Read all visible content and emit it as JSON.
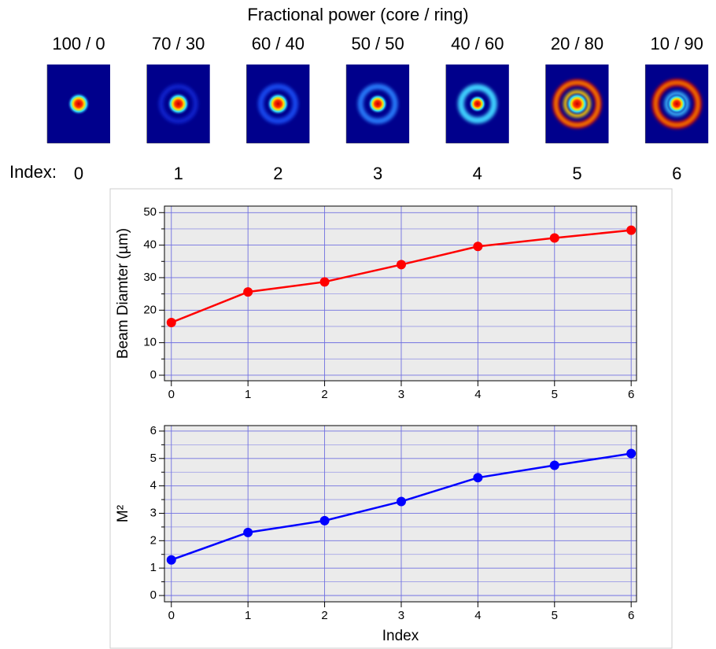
{
  "header": {
    "title": "Fractional power (core / ring)",
    "labels": [
      "100 / 0",
      "70 / 30",
      "60 / 40",
      "50 / 50",
      "40 / 60",
      "20 / 80",
      "10 / 90"
    ],
    "index_label": "Index:",
    "indices": [
      0,
      1,
      2,
      3,
      4,
      5,
      6
    ]
  },
  "chart_data": [
    {
      "type": "line",
      "ylabel": "Beam Diamter (µm)",
      "color": "#ff0000",
      "x": [
        0,
        1,
        2,
        3,
        4,
        5,
        6
      ],
      "values": [
        16.2,
        25.6,
        28.7,
        34.0,
        39.6,
        42.2,
        44.6
      ],
      "xlim": [
        -0.09,
        6.07
      ],
      "xticks": [
        0,
        1,
        2,
        3,
        4,
        5,
        6
      ],
      "ylim": [
        -1.7,
        52
      ],
      "yticks": [
        0,
        10,
        20,
        30,
        40,
        50
      ],
      "minor_yticks": [
        5,
        15,
        25,
        35,
        45
      ],
      "grid": true
    },
    {
      "type": "line",
      "ylabel": "M²",
      "xlabel": "Index",
      "color": "#0000ff",
      "x": [
        0,
        1,
        2,
        3,
        4,
        5,
        6
      ],
      "values": [
        1.3,
        2.3,
        2.73,
        3.43,
        4.3,
        4.75,
        5.18
      ],
      "xlim": [
        -0.09,
        6.07
      ],
      "xticks": [
        0,
        1,
        2,
        3,
        4,
        5,
        6
      ],
      "ylim": [
        -0.23,
        6.2
      ],
      "yticks": [
        0,
        1,
        2,
        3,
        4,
        5,
        6
      ],
      "minor_yticks": [
        0.5,
        1.5,
        2.5,
        3.5,
        4.5,
        5.5
      ],
      "grid": true
    }
  ]
}
